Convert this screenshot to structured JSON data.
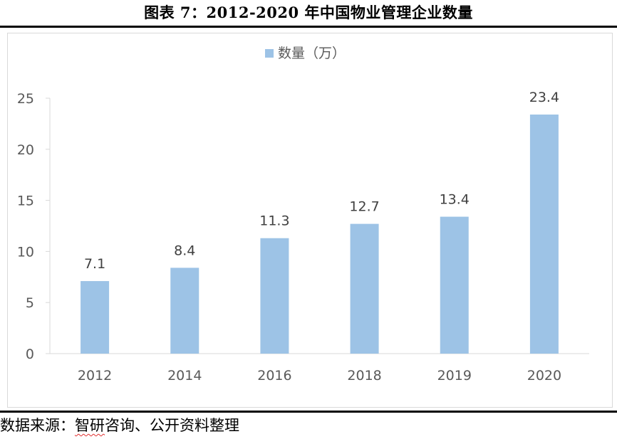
{
  "figure": {
    "title": "图表 7：2012-2020 年中国物业管理企业数量",
    "source_prefix": "数据来源：",
    "source_name": "智研",
    "source_rest": "咨询、公开资料整理"
  },
  "chart_data": {
    "type": "bar",
    "title": "",
    "xlabel": "",
    "ylabel": "",
    "categories": [
      "2012",
      "2014",
      "2016",
      "2018",
      "2019",
      "2020"
    ],
    "series": [
      {
        "name": "数量（万）",
        "values": [
          7.1,
          8.4,
          11.3,
          12.7,
          13.4,
          23.4
        ],
        "color": "#9dc3e6"
      }
    ],
    "ylim": [
      0,
      25
    ],
    "yticks": [
      0,
      5,
      10,
      15,
      20,
      25
    ],
    "data_labels": [
      "7.1",
      "8.4",
      "11.3",
      "12.7",
      "13.4",
      "23.4"
    ],
    "grid": false,
    "legend_position": "top-center"
  }
}
